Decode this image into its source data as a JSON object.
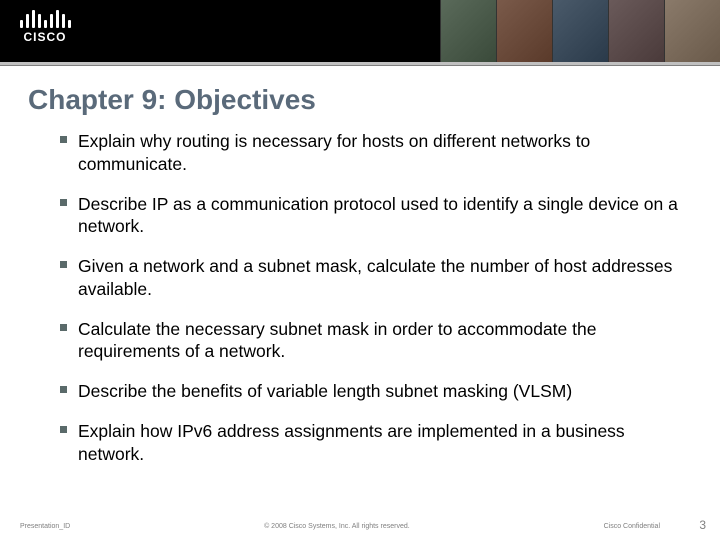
{
  "logo": {
    "brand_text": "CISCO"
  },
  "title": "Chapter 9: Objectives",
  "bullets": [
    "Explain why routing is necessary for hosts on different networks to communicate.",
    "Describe IP as a communication protocol used to identify a single device on a network.",
    "Given a network and a subnet mask, calculate the number of host addresses available.",
    "Calculate the necessary subnet mask in order to accommodate the requirements of a network.",
    "Describe the benefits of variable length subnet masking (VLSM)",
    "Explain how IPv6 address assignments are implemented in a business network."
  ],
  "footer": {
    "left": "Presentation_ID",
    "center": "© 2008 Cisco Systems, Inc. All rights reserved.",
    "right": "Cisco Confidential",
    "page": "3"
  },
  "colors": {
    "title_color": "#5a6a7a",
    "bullet_marker": "#5a6a6a",
    "footer_text": "#808080",
    "header_bg": "#000000"
  }
}
